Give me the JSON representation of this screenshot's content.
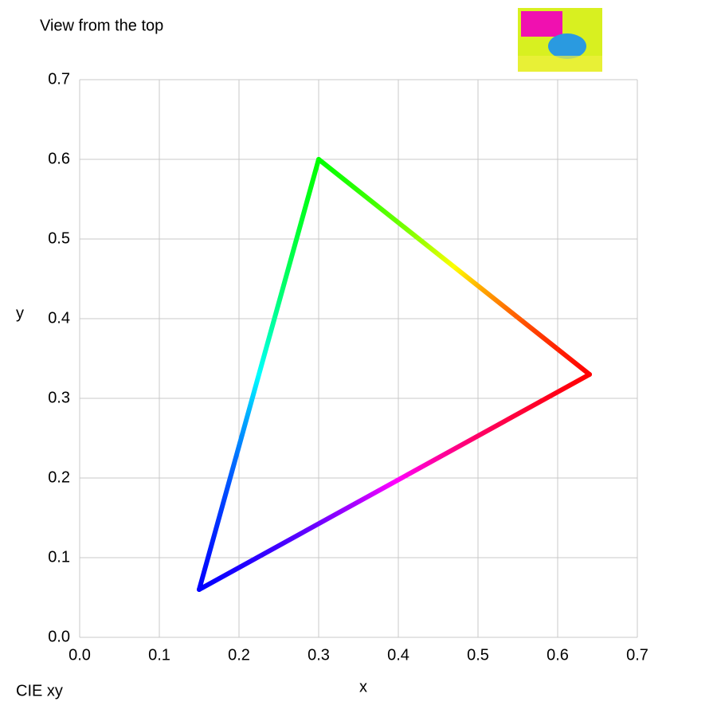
{
  "chart_data": {
    "type": "line",
    "title": "View from the top",
    "subtitle": "CIE xy",
    "xlabel": "x",
    "ylabel": "y",
    "x": [
      0.64,
      0.3,
      0.15,
      0.64
    ],
    "series": [
      {
        "values": [
          0.33,
          0.6,
          0.06,
          0.33
        ],
        "point_colors": [
          "#ff0000",
          "#00ff00",
          "#0000ff",
          "#ff0000"
        ]
      }
    ],
    "xlim": [
      0,
      0.7
    ],
    "ylim": [
      0,
      0.7
    ],
    "xticks": [
      {
        "value": 0,
        "label": "0.0"
      },
      0.1,
      0.2,
      0.3,
      0.4,
      0.5,
      0.6,
      0.7
    ],
    "yticks": [
      {
        "value": 0,
        "label": "0.0"
      },
      0.1,
      0.2,
      0.3,
      0.4,
      0.5,
      0.6,
      0.7
    ],
    "grid": true
  }
}
